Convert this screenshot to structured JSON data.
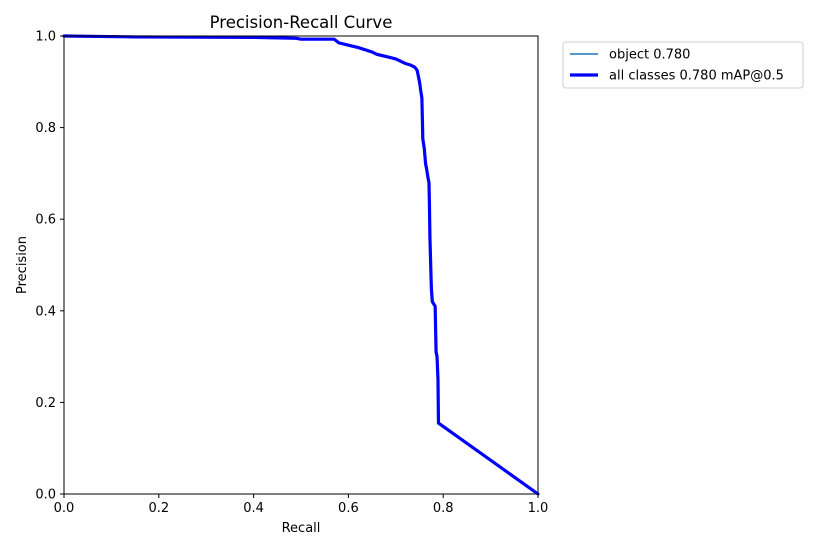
{
  "chart_data": {
    "type": "line",
    "title": "Precision-Recall Curve",
    "xlabel": "Recall",
    "ylabel": "Precision",
    "xlim": [
      0.0,
      1.0
    ],
    "ylim": [
      0.0,
      1.0
    ],
    "x_ticks": [
      "0.0",
      "0.2",
      "0.4",
      "0.6",
      "0.8",
      "1.0"
    ],
    "y_ticks": [
      "0.0",
      "0.2",
      "0.4",
      "0.6",
      "0.8",
      "1.0"
    ],
    "grid": false,
    "legend_position": "outside-upper-right",
    "series": [
      {
        "name": "object 0.780",
        "color": "#1f77b4",
        "style": "thin",
        "x": [
          0.0,
          0.15,
          0.4,
          0.49,
          0.5,
          0.57,
          0.58,
          0.6,
          0.62,
          0.65,
          0.66,
          0.68,
          0.7,
          0.71,
          0.72,
          0.73,
          0.74,
          0.745,
          0.75,
          0.752,
          0.755,
          0.757,
          0.76,
          0.763,
          0.765,
          0.768,
          0.77,
          0.771,
          0.772,
          0.775,
          0.777,
          0.78,
          0.783,
          0.785,
          0.787,
          0.789,
          0.79,
          1.0
        ],
        "y": [
          1.0,
          0.998,
          0.997,
          0.995,
          0.993,
          0.993,
          0.985,
          0.98,
          0.975,
          0.965,
          0.96,
          0.955,
          0.95,
          0.945,
          0.94,
          0.937,
          0.932,
          0.925,
          0.9,
          0.885,
          0.865,
          0.775,
          0.755,
          0.72,
          0.71,
          0.69,
          0.68,
          0.63,
          0.56,
          0.45,
          0.42,
          0.415,
          0.41,
          0.31,
          0.3,
          0.25,
          0.155,
          0.0
        ]
      },
      {
        "name": "all classes 0.780 mAP@0.5",
        "color": "#0000ff",
        "style": "thick",
        "x": [
          0.0,
          0.15,
          0.4,
          0.49,
          0.5,
          0.57,
          0.58,
          0.6,
          0.62,
          0.65,
          0.66,
          0.68,
          0.7,
          0.71,
          0.72,
          0.73,
          0.74,
          0.745,
          0.75,
          0.752,
          0.755,
          0.757,
          0.76,
          0.763,
          0.765,
          0.768,
          0.77,
          0.771,
          0.772,
          0.775,
          0.777,
          0.78,
          0.783,
          0.785,
          0.787,
          0.789,
          0.79,
          1.0
        ],
        "y": [
          1.0,
          0.998,
          0.997,
          0.995,
          0.993,
          0.993,
          0.985,
          0.98,
          0.975,
          0.965,
          0.96,
          0.955,
          0.95,
          0.945,
          0.94,
          0.937,
          0.932,
          0.925,
          0.9,
          0.885,
          0.865,
          0.775,
          0.755,
          0.72,
          0.71,
          0.69,
          0.68,
          0.63,
          0.56,
          0.45,
          0.42,
          0.415,
          0.41,
          0.31,
          0.3,
          0.25,
          0.155,
          0.0
        ]
      }
    ]
  }
}
